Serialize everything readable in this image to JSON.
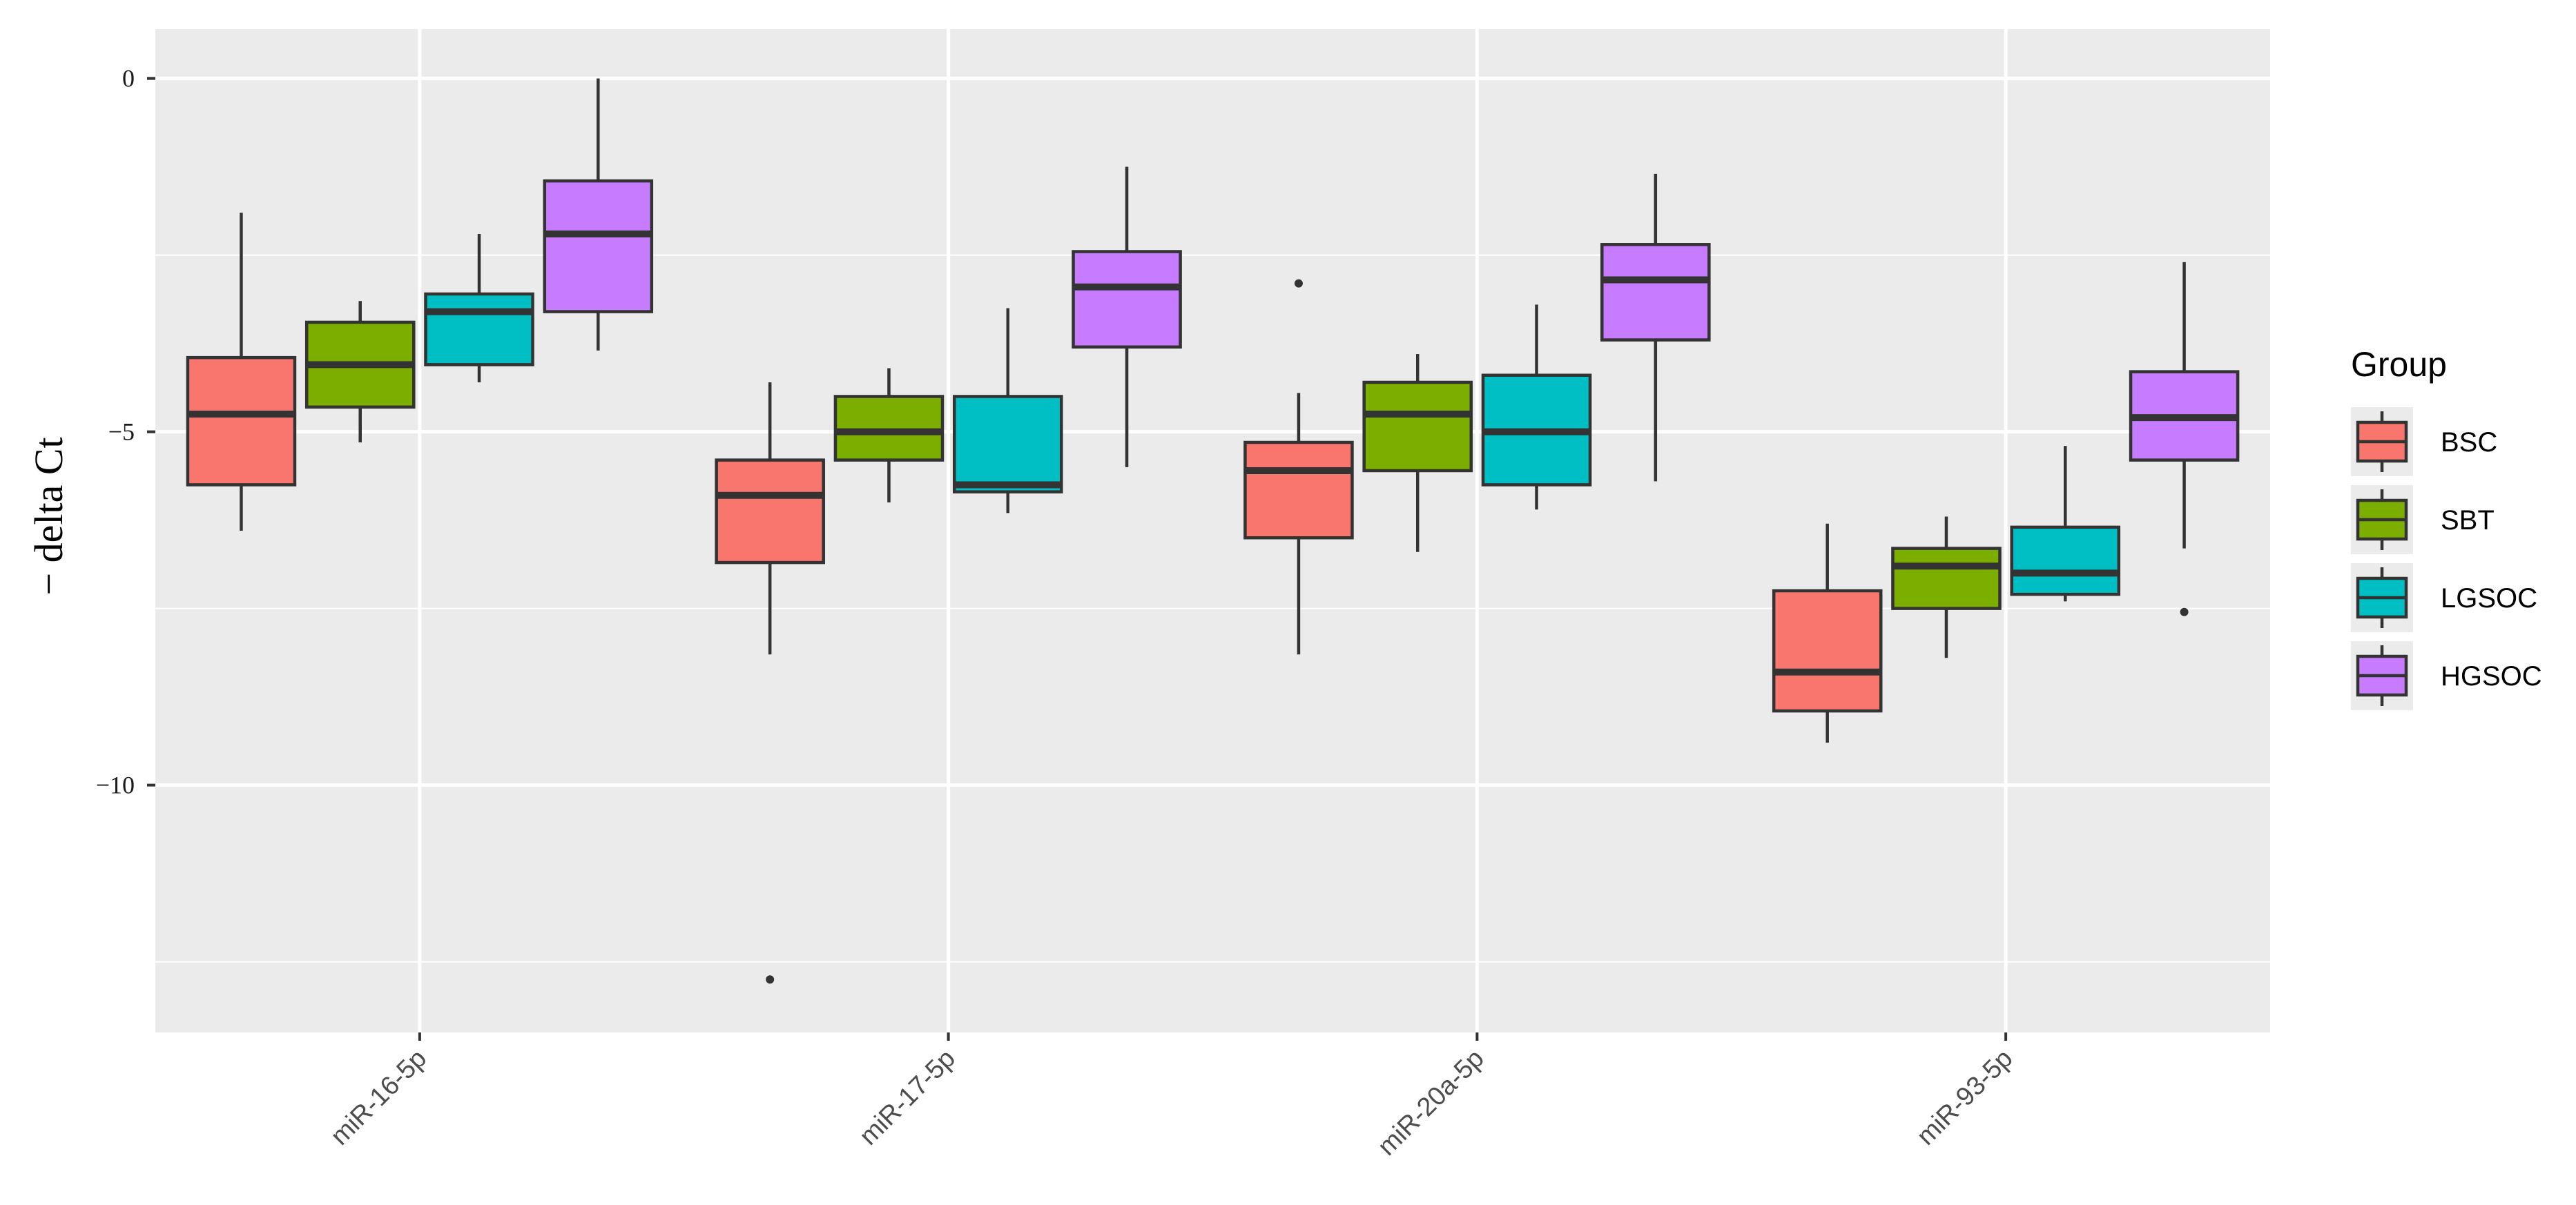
{
  "chart_data": {
    "type": "box",
    "ylabel": "− delta Ct",
    "xlabel": "",
    "ylim": [
      -13.5,
      0.7
    ],
    "yticks": [
      {
        "value": 0,
        "label": "0"
      },
      {
        "value": -5,
        "label": "−5"
      },
      {
        "value": -10,
        "label": "−10"
      }
    ],
    "categories": [
      "miR-16-5p",
      "miR-17-5p",
      "miR-20a-5p",
      "miR-93-5p"
    ],
    "legend": {
      "title": "Group",
      "position": "right"
    },
    "grid": true,
    "colors": {
      "panel_bg": "#ebebeb",
      "grid": "#ffffff",
      "box_stroke": "#333333"
    },
    "series": [
      {
        "name": "BSC",
        "color": "#f8766d",
        "boxes": [
          {
            "whisker_low": -6.4,
            "q1": -5.75,
            "median": -4.75,
            "q3": -3.95,
            "whisker_high": -1.9,
            "outliers": []
          },
          {
            "whisker_low": -8.15,
            "q1": -6.85,
            "median": -5.9,
            "q3": -5.4,
            "whisker_high": -4.3,
            "outliers": [
              -12.75
            ]
          },
          {
            "whisker_low": -8.15,
            "q1": -6.5,
            "median": -5.55,
            "q3": -5.15,
            "whisker_high": -4.45,
            "outliers": [
              -2.9
            ]
          },
          {
            "whisker_low": -9.4,
            "q1": -8.95,
            "median": -8.4,
            "q3": -7.25,
            "whisker_high": -6.3,
            "outliers": []
          }
        ]
      },
      {
        "name": "SBT",
        "color": "#7cae00",
        "boxes": [
          {
            "whisker_low": -5.15,
            "q1": -4.65,
            "median": -4.05,
            "q3": -3.45,
            "whisker_high": -3.15,
            "outliers": []
          },
          {
            "whisker_low": -6.0,
            "q1": -5.4,
            "median": -5.0,
            "q3": -4.5,
            "whisker_high": -4.1,
            "outliers": []
          },
          {
            "whisker_low": -6.7,
            "q1": -5.55,
            "median": -4.75,
            "q3": -4.3,
            "whisker_high": -3.9,
            "outliers": []
          },
          {
            "whisker_low": -8.2,
            "q1": -7.5,
            "median": -6.9,
            "q3": -6.65,
            "whisker_high": -6.2,
            "outliers": []
          }
        ]
      },
      {
        "name": "LGSOC",
        "color": "#00bfc4",
        "boxes": [
          {
            "whisker_low": -4.3,
            "q1": -4.05,
            "median": -3.3,
            "q3": -3.05,
            "whisker_high": -2.2,
            "outliers": []
          },
          {
            "whisker_low": -6.15,
            "q1": -5.85,
            "median": -5.75,
            "q3": -4.5,
            "whisker_high": -3.25,
            "outliers": []
          },
          {
            "whisker_low": -6.1,
            "q1": -5.75,
            "median": -5.0,
            "q3": -4.2,
            "whisker_high": -3.2,
            "outliers": []
          },
          {
            "whisker_low": -7.4,
            "q1": -7.3,
            "median": -7.0,
            "q3": -6.35,
            "whisker_high": -5.2,
            "outliers": []
          }
        ]
      },
      {
        "name": "HGSOC",
        "color": "#c77cff",
        "boxes": [
          {
            "whisker_low": -3.85,
            "q1": -3.3,
            "median": -2.2,
            "q3": -1.45,
            "whisker_high": 0.0,
            "outliers": []
          },
          {
            "whisker_low": -5.5,
            "q1": -3.8,
            "median": -2.95,
            "q3": -2.45,
            "whisker_high": -1.25,
            "outliers": []
          },
          {
            "whisker_low": -5.7,
            "q1": -3.7,
            "median": -2.85,
            "q3": -2.35,
            "whisker_high": -1.35,
            "outliers": []
          },
          {
            "whisker_low": -6.65,
            "q1": -5.4,
            "median": -4.8,
            "q3": -4.15,
            "whisker_high": -2.6,
            "outliers": [
              -7.55
            ]
          }
        ]
      }
    ]
  }
}
